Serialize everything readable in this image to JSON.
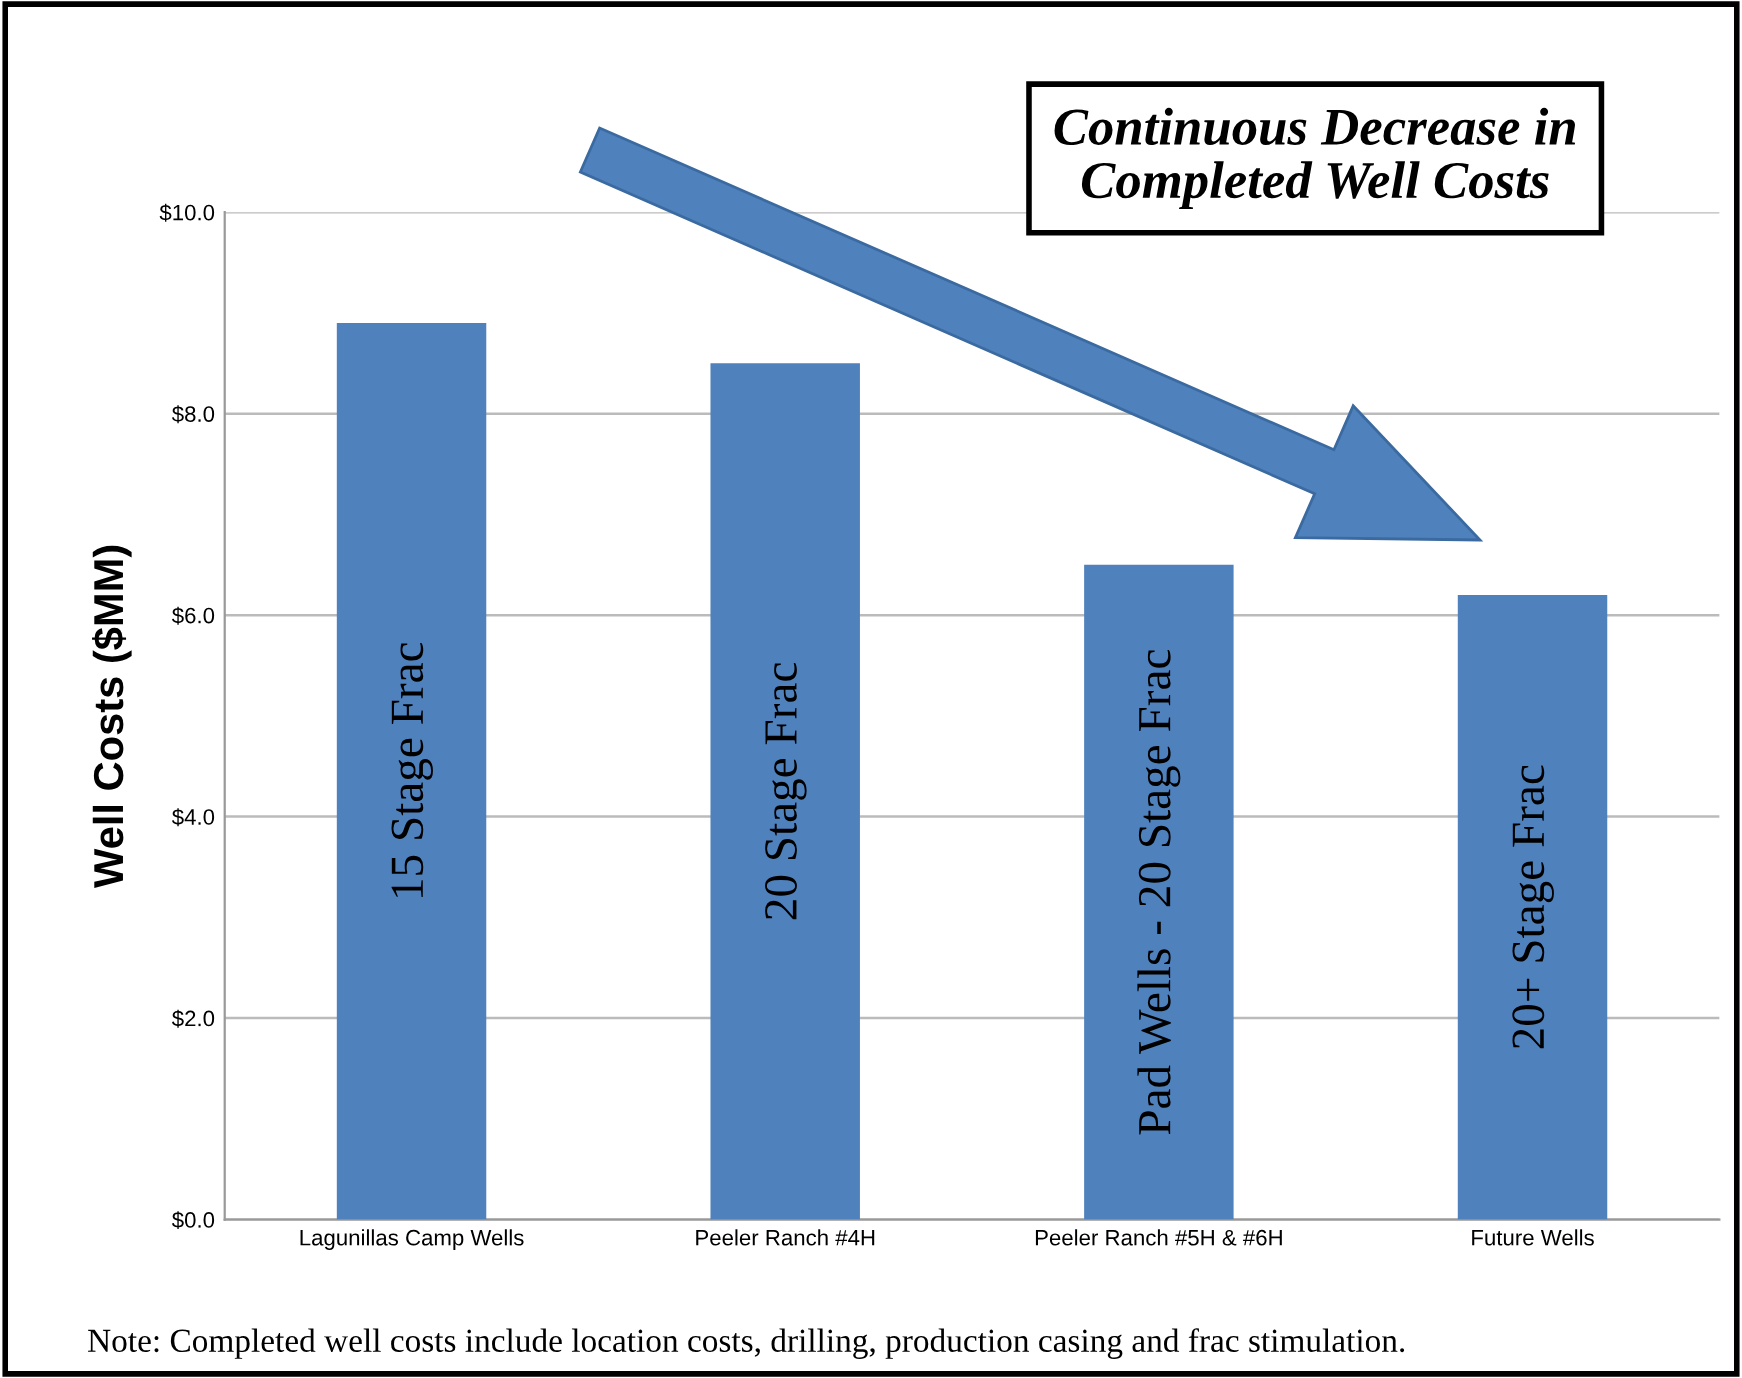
{
  "chart_data": {
    "type": "bar",
    "title": "Continuous Decrease in\nCompleted Well Costs",
    "ylabel": "Well Costs ($MM)",
    "categories": [
      "Lagunillas Camp Wells",
      "Peeler Ranch #4H",
      "Peeler Ranch #5H & #6H",
      "Future Wells"
    ],
    "values": [
      8.9,
      8.5,
      6.5,
      6.2
    ],
    "color": "#4f81bd",
    "ylim": [
      0,
      10
    ],
    "yticks": [
      {
        "value": 0,
        "label": "$0.0"
      },
      {
        "value": 2,
        "label": "$2.0"
      },
      {
        "value": 4,
        "label": "$4.0"
      },
      {
        "value": 6,
        "label": "$6.0"
      },
      {
        "value": 8,
        "label": "$8.0"
      },
      {
        "value": 10,
        "label": "$10.0"
      }
    ],
    "grid": "y",
    "annotations": [
      "15 Stage Frac",
      "20 Stage Frac",
      "Pad Wells - 20 Stage Frac",
      "20+ Stage Frac",
      "Note: Completed well costs include location costs, drilling, production casing and frac stimulation."
    ]
  }
}
